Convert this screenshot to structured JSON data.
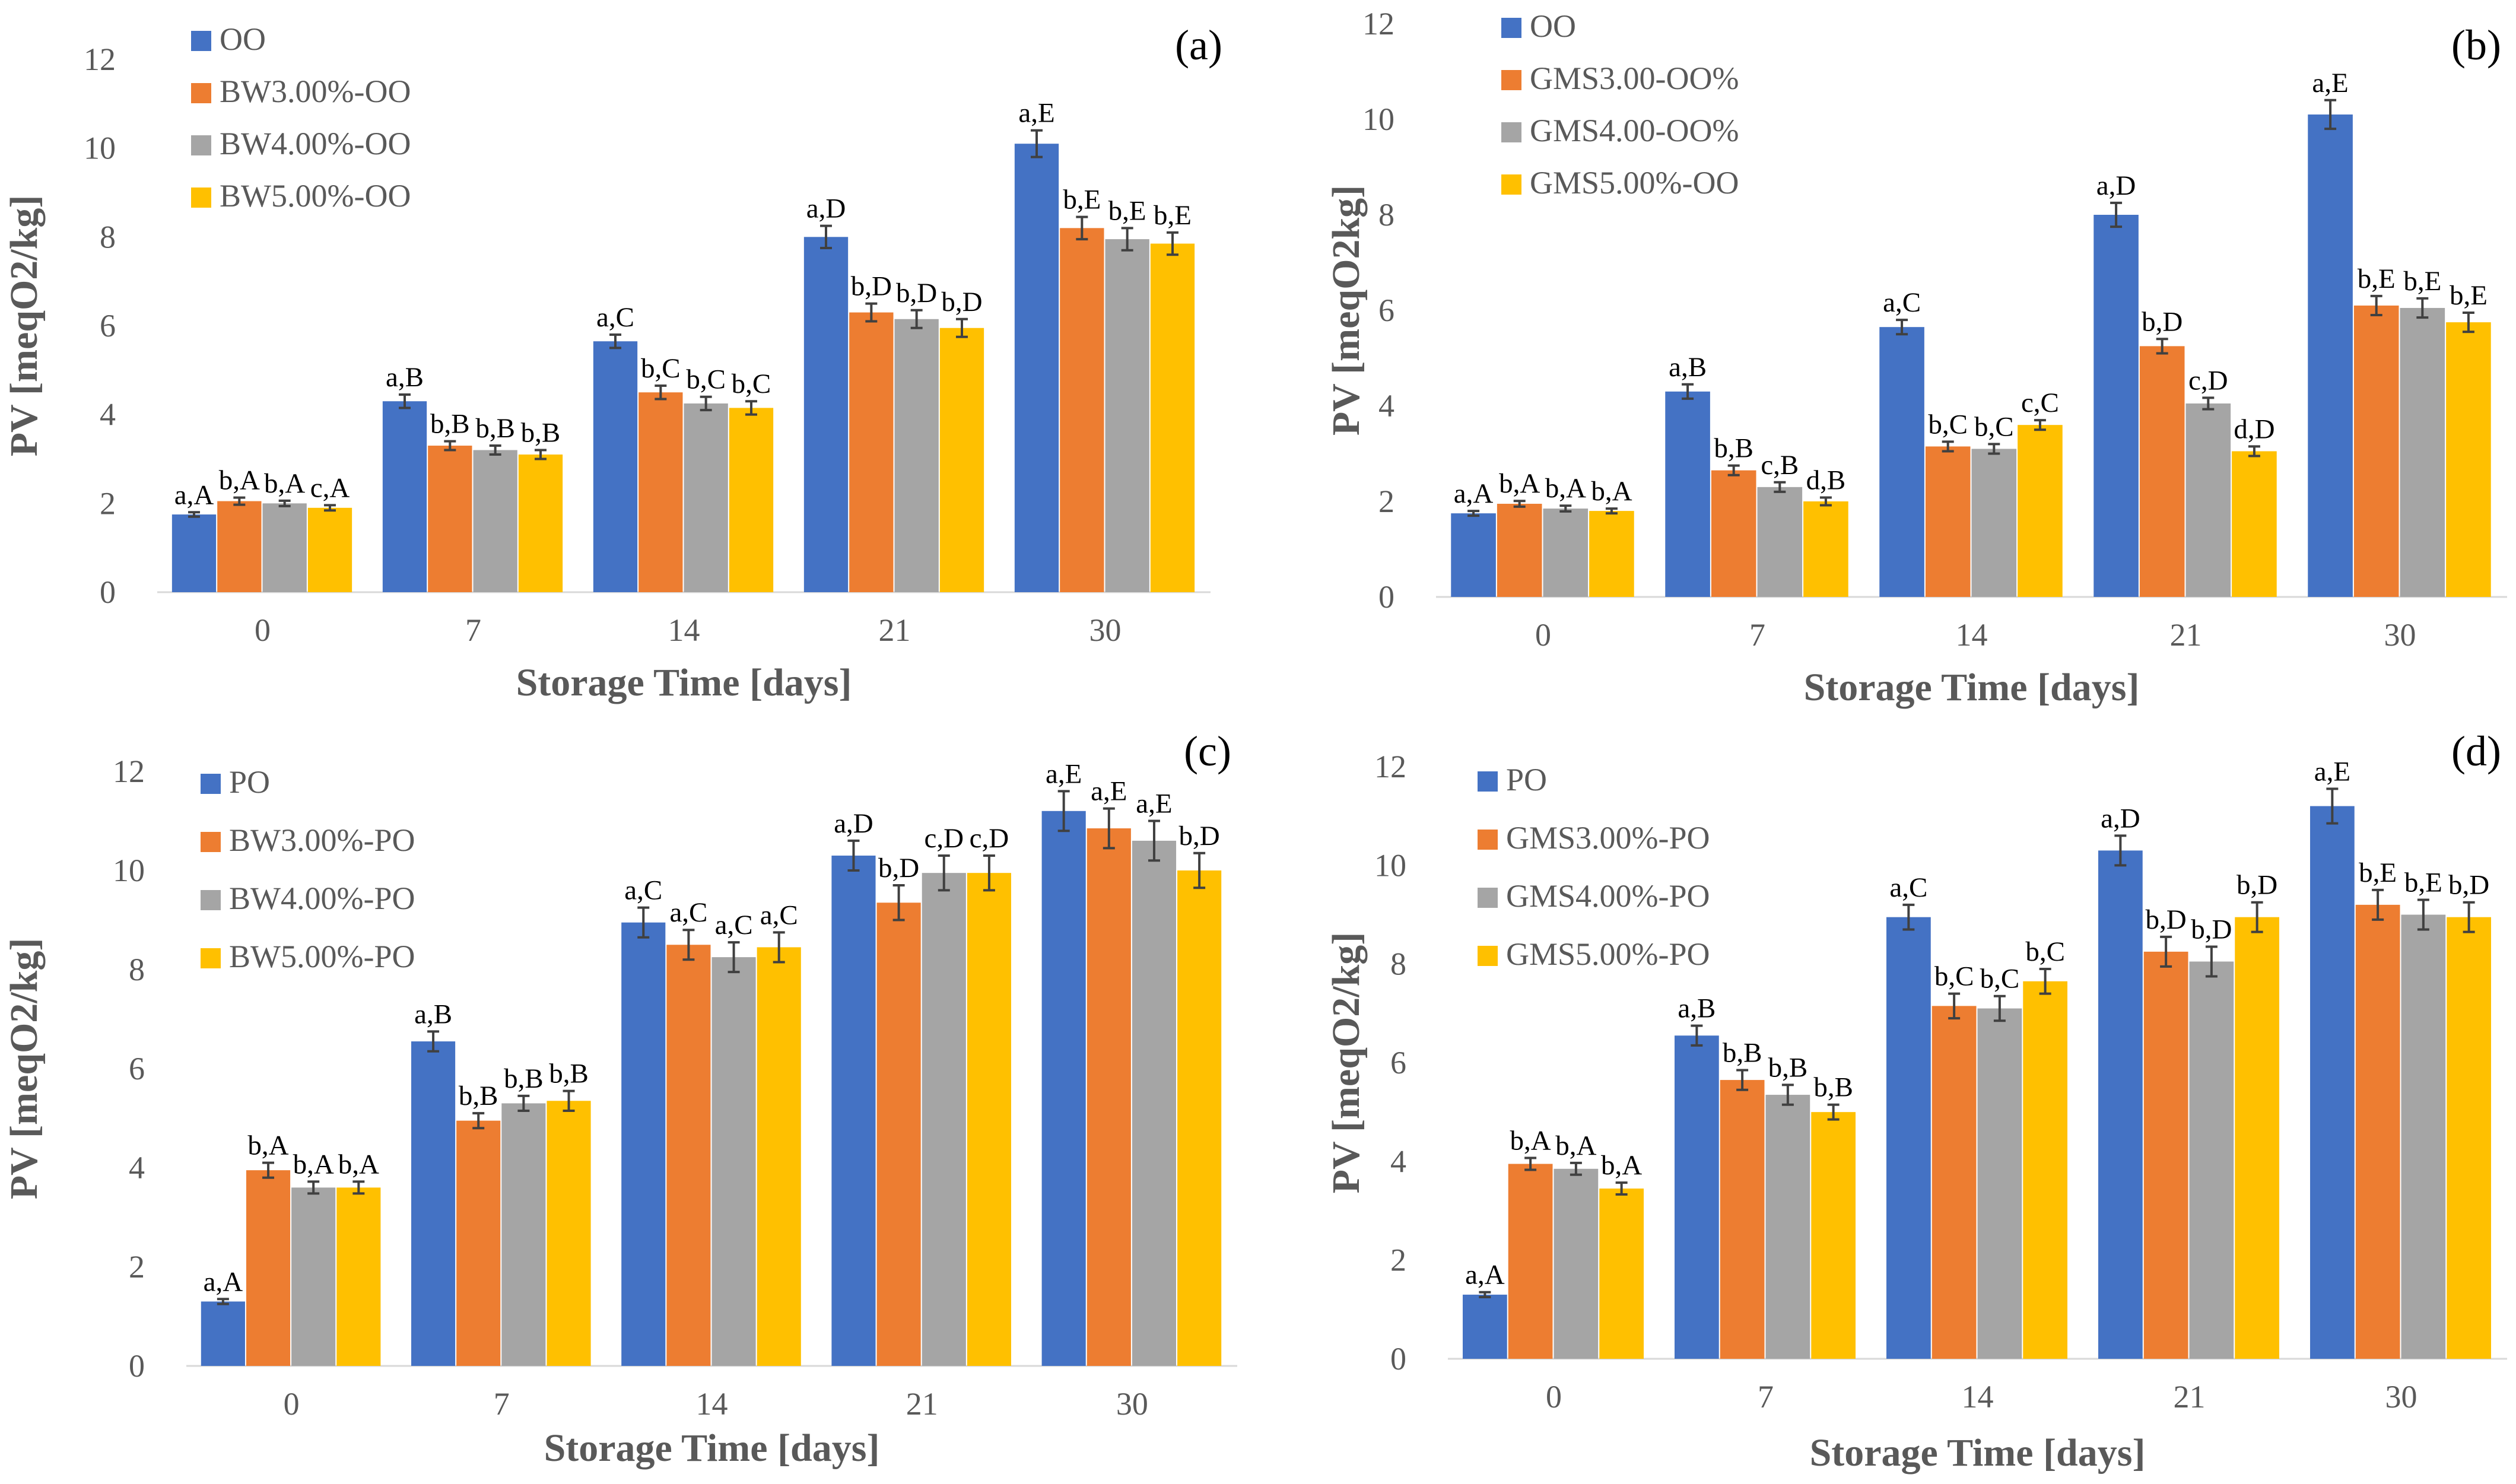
{
  "colors": [
    "#4472C4",
    "#ED7D31",
    "#A5A5A5",
    "#FFC000"
  ],
  "chart_data": [
    {
      "type": "bar",
      "panel_label": "(a)",
      "title": "",
      "xlabel": "Storage Time [days]",
      "ylabel": "PV [meqO2/kg]",
      "ylim": [
        0,
        12
      ],
      "yticks": [
        0,
        2,
        4,
        6,
        8,
        10,
        12
      ],
      "categories": [
        "0",
        "7",
        "14",
        "21",
        "30"
      ],
      "legend_position": "top-left",
      "series": [
        {
          "name": "OO",
          "values": [
            1.75,
            4.3,
            5.65,
            8.0,
            10.1
          ],
          "errors": [
            0.05,
            0.15,
            0.15,
            0.25,
            0.3
          ],
          "labels": [
            "a,A",
            "a,B",
            "a,C",
            "a,D",
            "a,E"
          ]
        },
        {
          "name": "BW3.00%-OO",
          "values": [
            2.05,
            3.3,
            4.5,
            6.3,
            8.2
          ],
          "errors": [
            0.08,
            0.1,
            0.15,
            0.2,
            0.25
          ],
          "labels": [
            "b,A",
            "b,B",
            "b,C",
            "b,D",
            "b,E"
          ]
        },
        {
          "name": "BW4.00%-OO",
          "values": [
            2.0,
            3.2,
            4.25,
            6.15,
            7.95
          ],
          "errors": [
            0.06,
            0.1,
            0.15,
            0.2,
            0.25
          ],
          "labels": [
            "b,A",
            "b,B",
            "b,C",
            "b,D",
            "b,E"
          ]
        },
        {
          "name": "BW5.00%-OO",
          "values": [
            1.9,
            3.1,
            4.15,
            5.95,
            7.85
          ],
          "errors": [
            0.06,
            0.1,
            0.15,
            0.2,
            0.25
          ],
          "labels": [
            "c,A",
            "b,B",
            "b,C",
            "b,D",
            "b,E"
          ]
        }
      ]
    },
    {
      "type": "bar",
      "panel_label": "(b)",
      "title": "",
      "xlabel": "Storage Time [days]",
      "ylabel": "PV [meqO2kg]",
      "ylim": [
        0,
        12
      ],
      "yticks": [
        0,
        2,
        4,
        6,
        8,
        10,
        12
      ],
      "categories": [
        "0",
        "7",
        "14",
        "21",
        "30"
      ],
      "legend_position": "top-left",
      "series": [
        {
          "name": "OO",
          "values": [
            1.75,
            4.3,
            5.65,
            8.0,
            10.1
          ],
          "errors": [
            0.05,
            0.15,
            0.15,
            0.25,
            0.3
          ],
          "labels": [
            "a,A",
            "a,B",
            "a,C",
            "a,D",
            "a,E"
          ]
        },
        {
          "name": "GMS3.00-OO%",
          "values": [
            1.95,
            2.65,
            3.15,
            5.25,
            6.1
          ],
          "errors": [
            0.06,
            0.1,
            0.1,
            0.15,
            0.2
          ],
          "labels": [
            "b,A",
            "b,B",
            "b,C",
            "b,D",
            "b,E"
          ]
        },
        {
          "name": "GMS4.00-OO%",
          "values": [
            1.85,
            2.3,
            3.1,
            4.05,
            6.05
          ],
          "errors": [
            0.06,
            0.1,
            0.1,
            0.12,
            0.2
          ],
          "labels": [
            "b,A",
            "c,B",
            "b,C",
            "c,D",
            "b,E"
          ]
        },
        {
          "name": "GMS5.00%-OO",
          "values": [
            1.8,
            2.0,
            3.6,
            3.05,
            5.75
          ],
          "errors": [
            0.05,
            0.08,
            0.1,
            0.1,
            0.2
          ],
          "labels": [
            "b,A",
            "d,B",
            "c,C",
            "d,D",
            "b,E"
          ]
        }
      ]
    },
    {
      "type": "bar",
      "panel_label": "(c)",
      "title": "",
      "xlabel": "Storage Time [days]",
      "ylabel": "PV [meqO2/kg]",
      "ylim": [
        0,
        12
      ],
      "yticks": [
        0,
        2,
        4,
        6,
        8,
        10,
        12
      ],
      "categories": [
        "0",
        "7",
        "14",
        "21",
        "30"
      ],
      "legend_position": "top-left",
      "series": [
        {
          "name": "PO",
          "values": [
            1.3,
            6.55,
            8.95,
            10.3,
            11.2
          ],
          "errors": [
            0.05,
            0.2,
            0.3,
            0.3,
            0.4
          ],
          "labels": [
            "a,A",
            "a,B",
            "a,C",
            "a,D",
            "a,E"
          ]
        },
        {
          "name": "BW3.00%-PO",
          "values": [
            3.95,
            4.95,
            8.5,
            9.35,
            10.85
          ],
          "errors": [
            0.15,
            0.15,
            0.3,
            0.35,
            0.4
          ],
          "labels": [
            "b,A",
            "b,B",
            "a,C",
            "b,D",
            "a,E"
          ]
        },
        {
          "name": "BW4.00%-PO",
          "values": [
            3.6,
            5.3,
            8.25,
            9.95,
            10.6
          ],
          "errors": [
            0.12,
            0.15,
            0.3,
            0.35,
            0.4
          ],
          "labels": [
            "b,A",
            "b,B",
            "a,C",
            "c,D",
            "a,E"
          ]
        },
        {
          "name": "BW5.00%-PO",
          "values": [
            3.6,
            5.35,
            8.45,
            9.95,
            10.0
          ],
          "errors": [
            0.12,
            0.2,
            0.3,
            0.35,
            0.35
          ],
          "labels": [
            "b,A",
            "b,B",
            "a,C",
            "c,D",
            "b,D"
          ]
        }
      ]
    },
    {
      "type": "bar",
      "panel_label": "(d)",
      "title": "",
      "xlabel": "Storage Time [days]",
      "ylabel": "PV [meqO2/kg]",
      "ylim": [
        0,
        12
      ],
      "yticks": [
        0,
        2,
        4,
        6,
        8,
        10,
        12
      ],
      "categories": [
        "0",
        "7",
        "14",
        "21",
        "30"
      ],
      "legend_position": "top-left",
      "series": [
        {
          "name": "PO",
          "values": [
            1.3,
            6.55,
            8.95,
            10.3,
            11.2
          ],
          "errors": [
            0.05,
            0.2,
            0.25,
            0.3,
            0.35
          ],
          "labels": [
            "a,A",
            "a,B",
            "a,C",
            "a,D",
            "a,E"
          ]
        },
        {
          "name": "GMS3.00%-PO",
          "values": [
            3.95,
            5.65,
            7.15,
            8.25,
            9.2
          ],
          "errors": [
            0.12,
            0.2,
            0.25,
            0.3,
            0.3
          ],
          "labels": [
            "b,A",
            "b,B",
            "b,C",
            "b,D",
            "b,E"
          ]
        },
        {
          "name": "GMS4.00%-PO",
          "values": [
            3.85,
            5.35,
            7.1,
            8.05,
            9.0
          ],
          "errors": [
            0.12,
            0.2,
            0.25,
            0.3,
            0.3
          ],
          "labels": [
            "b,A",
            "b,B",
            "b,C",
            "b,D",
            "b,E"
          ]
        },
        {
          "name": "GMS5.00%-PO",
          "values": [
            3.45,
            5.0,
            7.65,
            8.95,
            8.95
          ],
          "errors": [
            0.12,
            0.15,
            0.25,
            0.3,
            0.3
          ],
          "labels": [
            "b,A",
            "b,B",
            "b,C",
            "b,D",
            "b,D"
          ]
        }
      ]
    }
  ]
}
